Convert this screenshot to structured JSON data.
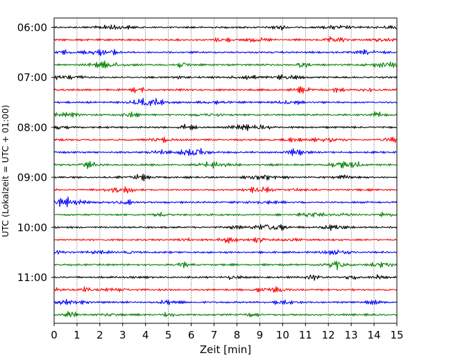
{
  "chart_data": {
    "type": "line",
    "subtype": "seismogram-helicorder",
    "xlabel": "Zeit  [min]",
    "ylabel": "UTC (Lokalzeit = UTC + 01:00)",
    "xlim": [
      0,
      15
    ],
    "x_ticks": [
      "0",
      "1",
      "2",
      "3",
      "4",
      "5",
      "6",
      "7",
      "8",
      "9",
      "10",
      "11",
      "12",
      "13",
      "14",
      "15"
    ],
    "y_tick_labels": [
      "06:00",
      "07:00",
      "08:00",
      "09:00",
      "10:00",
      "11:00"
    ],
    "grid": "vertical dotted lines at each minute",
    "trace_minutes": 15,
    "trace_count": 24,
    "trace_color_cycle": [
      "#000000",
      "#ff0000",
      "#0000ff",
      "#008000"
    ],
    "traces": [
      {
        "start": "06:00",
        "color": "#000000"
      },
      {
        "start": "06:15",
        "color": "#ff0000"
      },
      {
        "start": "06:30",
        "color": "#0000ff"
      },
      {
        "start": "06:45",
        "color": "#008000"
      },
      {
        "start": "07:00",
        "color": "#000000"
      },
      {
        "start": "07:15",
        "color": "#ff0000"
      },
      {
        "start": "07:30",
        "color": "#0000ff"
      },
      {
        "start": "07:45",
        "color": "#008000"
      },
      {
        "start": "08:00",
        "color": "#000000"
      },
      {
        "start": "08:15",
        "color": "#ff0000"
      },
      {
        "start": "08:30",
        "color": "#0000ff"
      },
      {
        "start": "08:45",
        "color": "#008000"
      },
      {
        "start": "09:00",
        "color": "#000000"
      },
      {
        "start": "09:15",
        "color": "#ff0000"
      },
      {
        "start": "09:30",
        "color": "#0000ff"
      },
      {
        "start": "09:45",
        "color": "#008000"
      },
      {
        "start": "10:00",
        "color": "#000000"
      },
      {
        "start": "10:15",
        "color": "#ff0000"
      },
      {
        "start": "10:30",
        "color": "#0000ff"
      },
      {
        "start": "10:45",
        "color": "#008000"
      },
      {
        "start": "11:00",
        "color": "#000000"
      },
      {
        "start": "11:15",
        "color": "#ff0000"
      },
      {
        "start": "11:30",
        "color": "#0000ff"
      },
      {
        "start": "11:45",
        "color": "#008000"
      }
    ]
  }
}
